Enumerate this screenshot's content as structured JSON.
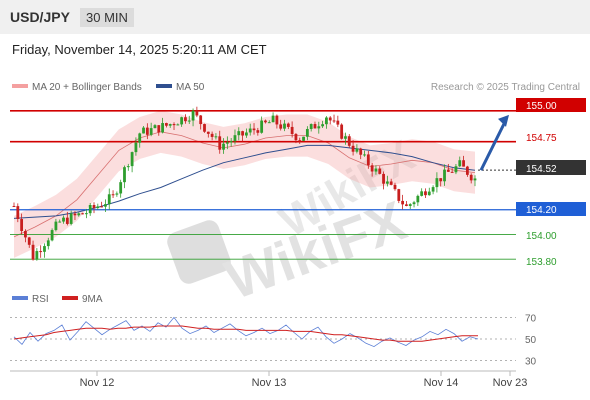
{
  "header": {
    "symbol": "USD/JPY",
    "timeframe": "30 MIN",
    "datetime": "Friday, November 14, 2025 5:20:11 AM CET"
  },
  "legend": {
    "ma20_label": "MA 20 + Bollinger Bands",
    "ma20_color": "#f4a0a0",
    "ma50_label": "MA 50",
    "ma50_color": "#2f4f8f",
    "credit": "Research © 2025 Trading Central"
  },
  "levels": {
    "resistance_2": "155.00",
    "resistance_1": "154.75",
    "current": "154.52",
    "pivot": "154.20",
    "support_1": "154.00",
    "support_2": "153.80"
  },
  "rsi_legend": {
    "rsi_label": "RSI",
    "rsi_color": "#5b7fd6",
    "ma_label": "9MA",
    "ma_color": "#d02020"
  },
  "xaxis": {
    "labels": [
      "Nov 12",
      "Nov 13",
      "Nov 14",
      "Nov 23"
    ]
  },
  "watermark": "WikiFX",
  "chart_data": [
    {
      "type": "candlestick",
      "ylim": [
        153.68,
        155.12
      ],
      "price_levels": [
        155.0,
        154.75,
        154.52,
        154.2,
        154.0,
        153.8
      ],
      "level_colors": {
        "resistance": "#d10000",
        "pivot": "#1f5fd6",
        "support": "#2e9e2e",
        "current": "#333333"
      },
      "projection": {
        "from": 154.52,
        "to": 155.0,
        "color": "#2a5aa8"
      },
      "ma50": [
        154.13,
        154.14,
        154.15,
        154.18,
        154.22,
        154.27,
        154.33,
        154.38,
        154.45,
        154.52,
        154.58,
        154.62,
        154.66,
        154.69,
        154.72,
        154.72,
        154.7,
        154.68,
        154.66,
        154.63,
        154.58,
        154.54,
        154.52
      ],
      "ma20": [
        153.98,
        154.06,
        154.15,
        154.28,
        154.48,
        154.68,
        154.78,
        154.83,
        154.8,
        154.74,
        154.7,
        154.73,
        154.78,
        154.8,
        154.8,
        154.74,
        154.62,
        154.55,
        154.57,
        154.6,
        154.58,
        154.52,
        154.5
      ]
    },
    {
      "type": "line",
      "title": "RSI",
      "yticks": [
        70,
        50,
        30
      ],
      "ylim": [
        25,
        75
      ],
      "series": [
        {
          "name": "RSI",
          "color": "#5b7fd6",
          "values": [
            52,
            45,
            56,
            48,
            55,
            58,
            63,
            49,
            57,
            66,
            60,
            54,
            59,
            63,
            67,
            58,
            62,
            57,
            65,
            61,
            70,
            60,
            55,
            58,
            62,
            56,
            60,
            64,
            58,
            53,
            56,
            60,
            55,
            58,
            63,
            56,
            50,
            57,
            61,
            52,
            46,
            50,
            55,
            51,
            46,
            43,
            48,
            51,
            47,
            44,
            49,
            52,
            57,
            54,
            59,
            55,
            48,
            52,
            50
          ]
        },
        {
          "name": "9MA",
          "color": "#d02020",
          "values": [
            50,
            51,
            52,
            53,
            54,
            56,
            57,
            58,
            59,
            60,
            60,
            60,
            59,
            60,
            60,
            61,
            61,
            61,
            62,
            62,
            62,
            62,
            61,
            60,
            60,
            59,
            59,
            59,
            59,
            58,
            58,
            58,
            58,
            58,
            58,
            57,
            57,
            57,
            56,
            55,
            54,
            54,
            53,
            52,
            51,
            50,
            49,
            49,
            48,
            48,
            48,
            48,
            49,
            50,
            51,
            52,
            53,
            53,
            53
          ]
        }
      ]
    }
  ]
}
